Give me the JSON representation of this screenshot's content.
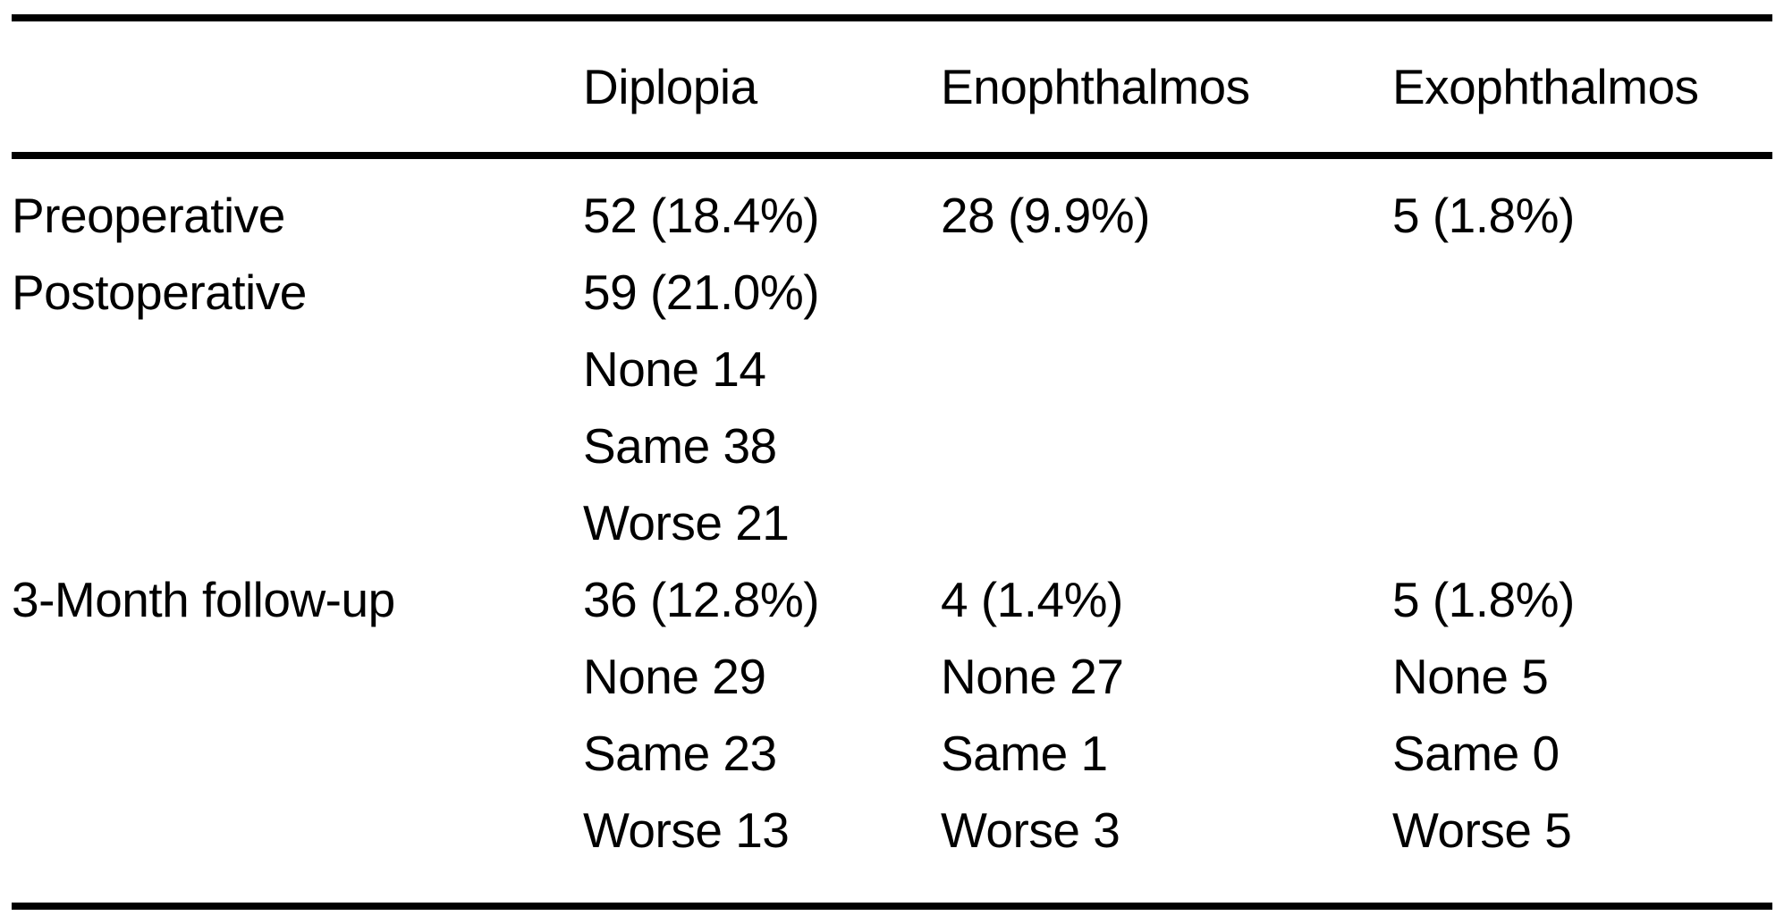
{
  "table": {
    "columns": [
      "",
      "Diplopia",
      "Enophthalmos",
      "Exophthalmos"
    ],
    "rows": [
      {
        "label": "Preoperative",
        "diplopia": [
          "52 (18.4%)"
        ],
        "enophthalmos": [
          "28 (9.9%)"
        ],
        "exophthalmos": [
          "5 (1.8%)"
        ]
      },
      {
        "label": "Postoperative",
        "diplopia": [
          "59 (21.0%)",
          "None 14",
          "Same 38",
          "Worse 21"
        ],
        "enophthalmos": [],
        "exophthalmos": []
      },
      {
        "label": "3-Month follow-up",
        "diplopia": [
          "36 (12.8%)",
          "None 29",
          "Same 23",
          "Worse 13"
        ],
        "enophthalmos": [
          "4 (1.4%)",
          "None 27",
          "Same 1",
          "Worse 3"
        ],
        "exophthalmos": [
          "5 (1.8%)",
          "None 5",
          "Same 0",
          "Worse 5"
        ]
      }
    ],
    "colors": {
      "text": "#000000",
      "background": "#ffffff",
      "rule": "#000000"
    }
  }
}
